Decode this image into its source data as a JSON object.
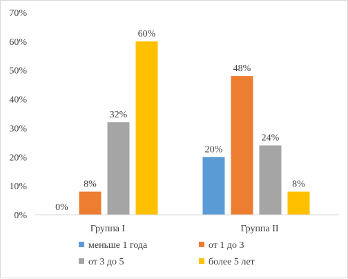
{
  "chart_data": {
    "type": "bar",
    "categories": [
      "Группа I",
      "Группа II"
    ],
    "series": [
      {
        "name": "меньше 1 года",
        "values": [
          0,
          20
        ],
        "color": "#5b9bd5"
      },
      {
        "name": "от 1 до 3",
        "values": [
          8,
          48
        ],
        "color": "#ed7d31"
      },
      {
        "name": "от 3 до 5",
        "values": [
          32,
          24
        ],
        "color": "#a5a5a5"
      },
      {
        "name": "более 5 лет",
        "values": [
          60,
          8
        ],
        "color": "#ffc000"
      }
    ],
    "ylim": [
      0,
      70
    ],
    "yticks": [
      0,
      10,
      20,
      30,
      40,
      50,
      60,
      70
    ],
    "unit": "%",
    "grid": false,
    "legend_position": "bottom",
    "data_labels": true
  }
}
